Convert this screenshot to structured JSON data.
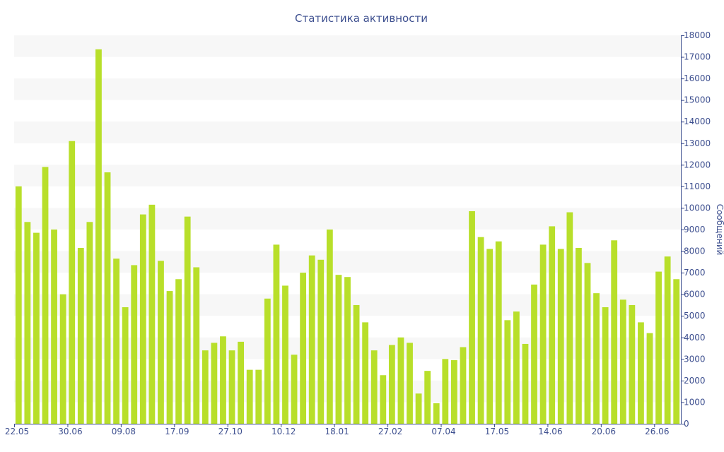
{
  "chart_data": {
    "type": "bar",
    "title": "Статистика активности",
    "xlabel": "",
    "ylabel": "Сообщений",
    "ylim": [
      0,
      18000
    ],
    "y_ticks": [
      0,
      1000,
      2000,
      3000,
      4000,
      5000,
      6000,
      7000,
      8000,
      9000,
      10000,
      11000,
      12000,
      13000,
      14000,
      15000,
      16000,
      17000,
      18000
    ],
    "y_axis_side": "right",
    "x_tick_labels": [
      {
        "label": "22.05",
        "index": 0
      },
      {
        "label": "30.06",
        "index": 6
      },
      {
        "label": "09.08",
        "index": 12
      },
      {
        "label": "17.09",
        "index": 18
      },
      {
        "label": "27.10",
        "index": 24
      },
      {
        "label": "10.12",
        "index": 30
      },
      {
        "label": "18.01",
        "index": 36
      },
      {
        "label": "27.02",
        "index": 42
      },
      {
        "label": "07.04",
        "index": 48
      },
      {
        "label": "17.05",
        "index": 54
      },
      {
        "label": "14.06",
        "index": 60
      },
      {
        "label": "20.06",
        "index": 66
      },
      {
        "label": "26.06",
        "index": 72
      }
    ],
    "bar_color": "#b8df2a",
    "band_color": "#f7f7f7",
    "grid": "alternating horizontal bands",
    "values": [
      11000,
      9350,
      8850,
      11900,
      9000,
      6000,
      13100,
      8150,
      9350,
      17350,
      11650,
      7650,
      5400,
      7350,
      9700,
      10150,
      7550,
      6150,
      6700,
      9600,
      7250,
      3400,
      3750,
      4050,
      3400,
      3800,
      2500,
      2500,
      5800,
      8300,
      6400,
      3200,
      7000,
      7800,
      7600,
      9000,
      6900,
      6800,
      5500,
      4700,
      3400,
      2250,
      3650,
      4000,
      3750,
      1400,
      2450,
      950,
      3000,
      2950,
      3550,
      9850,
      8650,
      8100,
      8450,
      4800,
      5200,
      3700,
      6450,
      8300,
      9150,
      8100,
      9800,
      8150,
      7450,
      6050,
      5400,
      8500,
      5750,
      5500,
      4700,
      4200,
      7050,
      7750,
      6700
    ]
  }
}
